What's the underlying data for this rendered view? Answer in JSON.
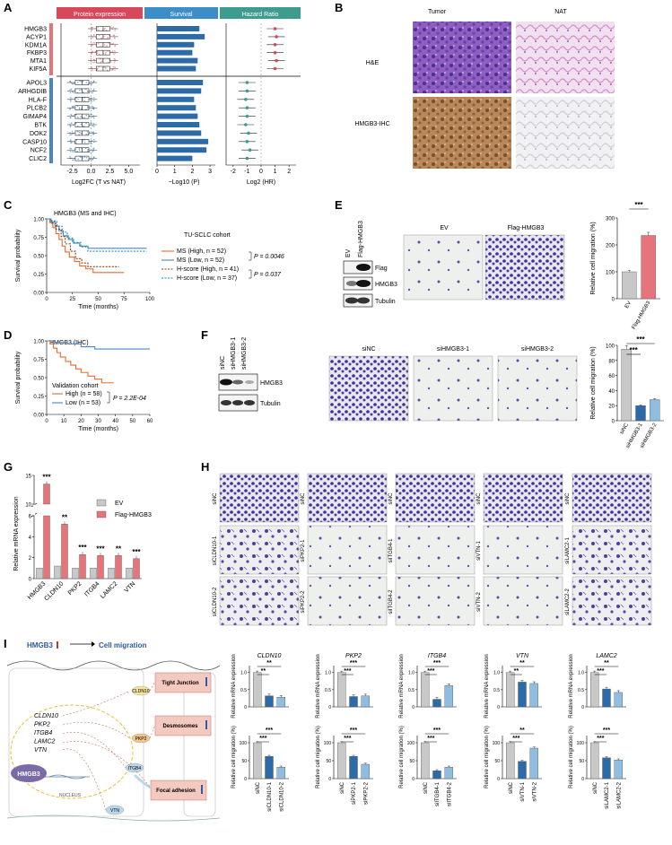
{
  "colors": {
    "red": "#e8747b",
    "blue": "#4a86c0",
    "gray": "#c8c8c8",
    "dkblue": "#2d6aa8",
    "ltblue": "#8fbde0",
    "purple": "#7b6aa8",
    "headerRed": "#d9475b",
    "headerBlue": "#3b8ec7",
    "headerTeal": "#3d9c8e",
    "orange": "#e46b2d",
    "he": "#8a4fb0",
    "ihc": "#9b6a3a"
  },
  "panelA": {
    "label": "A",
    "headers": [
      "Protein expression",
      "Survival",
      "Hazard Ratio"
    ],
    "genes_up": [
      "HMGB3",
      "ACYP1",
      "KDM1A",
      "FKBP3",
      "MTA1",
      "KIF5A"
    ],
    "genes_down": [
      "APOL3",
      "ARHGDIB",
      "HLA-F",
      "PLCB2",
      "GIMAP4",
      "BTK",
      "DOK2",
      "CASP10",
      "NCF2",
      "CLIC2"
    ],
    "box_ticks": [
      "-2.5",
      "0.0",
      "2.5",
      "5.0"
    ],
    "box_xlabel": "Log2FC (T vs NAT)",
    "surv_ticks": [
      "0",
      "1",
      "2",
      "3"
    ],
    "surv_xlabel": "−Log10 (P)",
    "hr_ticks": [
      "-2",
      "-1",
      "0",
      "1",
      "2"
    ],
    "hr_xlabel": "Log2 (HR)"
  },
  "panelB": {
    "label": "B",
    "cols": [
      "Tumor",
      "NAT"
    ],
    "rows": [
      "H&E",
      "HMGB3-IHC"
    ]
  },
  "panelC": {
    "label": "C",
    "title": "HMGB3 (MS and IHC)",
    "cohort": "TU-SCLC cohort",
    "ylabel": "Survival probability",
    "xlabel": "Time (months)",
    "yticks": [
      "1.00",
      "0.75",
      "0.50",
      "0.25",
      "0.00"
    ],
    "xticks": [
      "0",
      "25",
      "50",
      "75",
      "100"
    ],
    "legend": [
      "MS (High, n = 52)",
      "MS (Low, n = 52)",
      "H-score (High, n = 41)",
      "H-score (Low, n = 37)"
    ],
    "p1": "P = 0.0046",
    "p2": "P = 0.037"
  },
  "panelD": {
    "label": "D",
    "title": "HMGB3 (IHC)",
    "cohort": "Validation cohort",
    "ylabel": "Survival probability",
    "xlabel": "Time (months)",
    "yticks": [
      "1.00",
      "0.75",
      "0.50",
      "0.25",
      "0.00"
    ],
    "xticks": [
      "0",
      "10",
      "20",
      "30",
      "40",
      "50",
      "60"
    ],
    "legend": [
      "High (n = 58)",
      "Low (n = 53)"
    ],
    "p": "P = 2.2E-04"
  },
  "panelE": {
    "label": "E",
    "lanes": [
      "EV",
      "Flag-HMGB3"
    ],
    "blots": [
      "Flag",
      "HMGB3",
      "Tubulin"
    ],
    "images": [
      "EV",
      "Flag-HMGB3"
    ],
    "ylabel": "Relative cell migration (%)",
    "yticks": [
      "0",
      "100",
      "200",
      "300"
    ],
    "sig": "***"
  },
  "panelF": {
    "label": "F",
    "lanes": [
      "siNC",
      "siHMGB3-1",
      "siHMGB3-2"
    ],
    "blots": [
      "HMGB3",
      "Tubulin"
    ],
    "images": [
      "siNC",
      "siHMGB3-1",
      "siHMGB3-2"
    ],
    "ylabel": "Relative cell migration (%)",
    "yticks": [
      "0",
      "20",
      "40",
      "60",
      "80",
      "100"
    ],
    "sig": [
      "***",
      "***"
    ]
  },
  "panelG": {
    "label": "G",
    "ylabel": "Relative mRNA expression",
    "legend": [
      "EV",
      "Flag-HMGB3"
    ],
    "categories": [
      "HMGB3",
      "CLDN10",
      "PKP2",
      "ITGB4",
      "LAMC2",
      "VTN"
    ],
    "sig": [
      "***",
      "**",
      "***",
      "***",
      "**",
      "***"
    ],
    "yticks_low": [
      "0",
      "2",
      "4",
      "6"
    ],
    "yticks_high": [
      "10",
      "15"
    ]
  },
  "panelH": {
    "label": "H",
    "cols": [
      [
        "siNC",
        "siCLDN10-1",
        "siCLDN10-2"
      ],
      [
        "siNC",
        "siPKP2-1",
        "siPKP2-2"
      ],
      [
        "siNC",
        "siITGB4-1",
        "siITGB4-2"
      ],
      [
        "siNC",
        "siVTN-1",
        "siVTN-2"
      ],
      [
        "siNC",
        "siLAMC2-1",
        "siLAMC2-2"
      ]
    ]
  },
  "panelI": {
    "label": "I",
    "headline_gene": "HMGB3",
    "headline_text": "Cell migration",
    "genes": [
      "CLDN10",
      "PKP2",
      "ITGB4",
      "LAMC2",
      "VTN"
    ],
    "nucleus": "NUCLEUS",
    "hub": "HMGB3",
    "nodes": [
      "CLDN10",
      "PKP2",
      "ITGB4",
      "LAMC2",
      "VTN"
    ],
    "structures": [
      "Tight Junction",
      "Desmosomes",
      "Focal adhesion"
    ],
    "charts": [
      {
        "gene": "CLDN10",
        "lanes": [
          "siNC",
          "siCLDN10-1",
          "siCLDN10-2"
        ],
        "sig_mrna": [
          "**",
          "**"
        ],
        "sig_mig": [
          "***",
          "***"
        ]
      },
      {
        "gene": "PKP2",
        "lanes": [
          "siNC",
          "siPKP2-1",
          "siPKP2-2"
        ],
        "sig_mrna": [
          "***",
          "***"
        ],
        "sig_mig": [
          "***",
          "***"
        ]
      },
      {
        "gene": "ITGB4",
        "lanes": [
          "siNC",
          "siITGB4-1",
          "siITGB4-2"
        ],
        "sig_mrna": [
          "***",
          "***"
        ],
        "sig_mig": [
          "***",
          "***"
        ]
      },
      {
        "gene": "VTN",
        "lanes": [
          "siNC",
          "siVTN-1",
          "siVTN-2"
        ],
        "sig_mrna": [
          "**",
          "**"
        ],
        "sig_mig": [
          "***",
          "**"
        ]
      },
      {
        "gene": "LAMC2",
        "lanes": [
          "siNC",
          "siLAMC2-1",
          "siLAMC2-2"
        ],
        "sig_mrna": [
          "***",
          "**"
        ],
        "sig_mig": [
          "***",
          "***"
        ]
      }
    ],
    "mrna_ylabel": "Relative mRNA expression",
    "mig_ylabel": "Relative cell migration (%)"
  },
  "chart_data": [
    {
      "type": "bar",
      "name": "A-survival",
      "categories": [
        "HMGB3",
        "ACYP1",
        "KDM1A",
        "FKBP3",
        "MTA1",
        "KIF5A",
        "APOL3",
        "ARHGDIB",
        "HLA-F",
        "PLCB2",
        "GIMAP4",
        "BTK",
        "DOK2",
        "CASP10",
        "NCF2",
        "CLIC2"
      ],
      "values": [
        2.4,
        2.7,
        2.1,
        2.0,
        2.3,
        2.2,
        2.6,
        2.5,
        2.1,
        2.2,
        2.3,
        2.4,
        2.5,
        2.9,
        2.8,
        2.0
      ],
      "xlim": [
        0,
        3.5
      ]
    },
    {
      "type": "scatter",
      "name": "A-hazard",
      "categories": [
        "HMGB3",
        "ACYP1",
        "KDM1A",
        "FKBP3",
        "MTA1",
        "KIF5A",
        "APOL3",
        "ARHGDIB",
        "HLA-F",
        "PLCB2",
        "GIMAP4",
        "BTK",
        "DOK2",
        "CASP10",
        "NCF2",
        "CLIC2"
      ],
      "values": [
        1.0,
        1.1,
        1.0,
        1.0,
        1.1,
        1.0,
        -1.0,
        -1.0,
        -1.1,
        -1.0,
        -1.0,
        -1.1,
        -0.9,
        -1.0,
        -0.8,
        -1.0
      ],
      "xlim": [
        -2.5,
        2.5
      ]
    },
    {
      "type": "bar",
      "name": "E",
      "categories": [
        "EV",
        "Flag-HMGB3"
      ],
      "values": [
        100,
        235
      ],
      "ylim": [
        0,
        300
      ]
    },
    {
      "type": "bar",
      "name": "F",
      "categories": [
        "siNC",
        "siHMGB3-1",
        "siHMGB3-2"
      ],
      "values": [
        95,
        20,
        28
      ],
      "ylim": [
        0,
        100
      ]
    },
    {
      "type": "bar",
      "name": "G",
      "categories": [
        "HMGB3",
        "CLDN10",
        "PKP2",
        "ITGB4",
        "LAMC2",
        "VTN"
      ],
      "series": [
        {
          "name": "EV",
          "values": [
            1,
            1.2,
            1,
            1,
            1,
            1
          ]
        },
        {
          "name": "Flag-HMGB3",
          "values": [
            13.5,
            5.2,
            2.3,
            2.2,
            2.2,
            1.9
          ]
        }
      ]
    },
    {
      "type": "bar",
      "name": "I-mrna",
      "categories": [
        "siNC",
        "si-1",
        "si-2"
      ],
      "series": [
        {
          "name": "CLDN10",
          "values": [
            1.0,
            0.32,
            0.28
          ]
        },
        {
          "name": "PKP2",
          "values": [
            1.0,
            0.3,
            0.32
          ]
        },
        {
          "name": "ITGB4",
          "values": [
            1.0,
            0.22,
            0.62
          ]
        },
        {
          "name": "VTN",
          "values": [
            1.0,
            0.72,
            0.68
          ]
        },
        {
          "name": "LAMC2",
          "values": [
            1.0,
            0.52,
            0.42
          ]
        }
      ]
    },
    {
      "type": "bar",
      "name": "I-migration",
      "categories": [
        "siNC",
        "si-1",
        "si-2"
      ],
      "series": [
        {
          "name": "CLDN10",
          "values": [
            100,
            62,
            32
          ]
        },
        {
          "name": "PKP2",
          "values": [
            100,
            62,
            40
          ]
        },
        {
          "name": "ITGB4",
          "values": [
            100,
            22,
            32
          ]
        },
        {
          "name": "VTN",
          "values": [
            100,
            48,
            85
          ]
        },
        {
          "name": "LAMC2",
          "values": [
            100,
            58,
            52
          ]
        }
      ]
    }
  ]
}
